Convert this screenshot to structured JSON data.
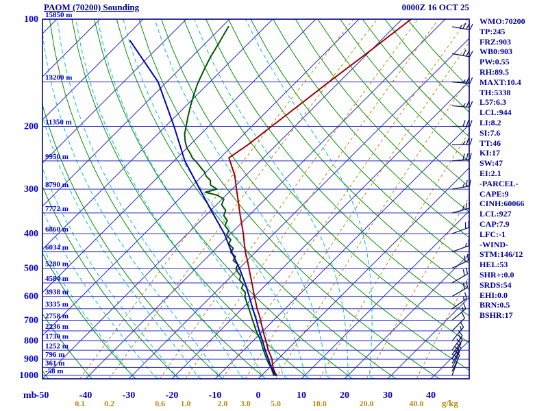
{
  "header": {
    "title": "PAOM (70200) Sounding",
    "datetime": "0000Z 16 OCT 25"
  },
  "stats": [
    "WMO:70200",
    "TP:245",
    "FRZ:903",
    "WB0:903",
    "PW:0.55",
    "RH:89.5",
    "MAXT:10.4",
    "TH:5338",
    "L57:6.3",
    "LCL:944",
    "LI:8.2",
    "SI:7.6",
    "TT:46",
    "KI:17",
    "SW:47",
    "EI:2.1",
    "-PARCEL-",
    "CAPE:9",
    "CINH:60066",
    "LCL:927",
    "CAP:7.9",
    "LFC:-1",
    "-WIND-",
    "STM:146/12",
    "HEL:53",
    "SHR+:0.0",
    "SRDS:54",
    "EHI:0.0",
    "BRN:0.5",
    "BSHR:17"
  ],
  "axes": {
    "unit_left": "mb",
    "unit_right": "g/kg",
    "pressure_ticks": [
      100,
      200,
      300,
      400,
      500,
      600,
      700,
      800,
      900,
      1000
    ],
    "temp_ticks": [
      -50,
      -40,
      -30,
      -20,
      -10,
      0,
      10,
      20,
      30,
      40
    ],
    "height_labels": [
      {
        "p": 100,
        "label": "15850 m"
      },
      {
        "p": 150,
        "label": "13200 m"
      },
      {
        "p": 200,
        "label": "11350 m"
      },
      {
        "p": 250,
        "label": "9950 m"
      },
      {
        "p": 300,
        "label": "8790 m"
      },
      {
        "p": 350,
        "label": "7772 m"
      },
      {
        "p": 400,
        "label": "6860 m"
      },
      {
        "p": 450,
        "label": "6034 m"
      },
      {
        "p": 500,
        "label": "5280 m"
      },
      {
        "p": 550,
        "label": "4584 m"
      },
      {
        "p": 600,
        "label": "3938 m"
      },
      {
        "p": 650,
        "label": "3335 m"
      },
      {
        "p": 700,
        "label": "2758 m"
      },
      {
        "p": 750,
        "label": "2236 m"
      },
      {
        "p": 800,
        "label": "1730 m"
      },
      {
        "p": 850,
        "label": "1252 m"
      },
      {
        "p": 900,
        "label": "796 m"
      },
      {
        "p": 950,
        "label": "361 m"
      },
      {
        "p": 1000,
        "label": "-58 m"
      }
    ]
  },
  "colors": {
    "frame": "#000080",
    "isotherm": "#2a2ac8",
    "pressure_line": "#2a2ac8",
    "dry_adiabat": "#009000",
    "moist_adiabat": "#00c0c8",
    "mixing_ratio": "#b8860b",
    "axis_text": "#0000cc",
    "temperature": "#a00000",
    "dewpoint": "#005500",
    "wetbulb": "#0000bb",
    "wind_barb": "#0b1560"
  },
  "chart_data": {
    "type": "skewt-logp",
    "pressure_range_mb": [
      100,
      1022
    ],
    "pressure_lines_mb": [
      100,
      150,
      200,
      250,
      300,
      350,
      400,
      450,
      500,
      550,
      600,
      650,
      700,
      750,
      800,
      850,
      900,
      950,
      1000
    ],
    "isotherms_c": {
      "min": -130,
      "max": 50,
      "step": 10
    },
    "dry_adiabats_theta_c": [
      -50,
      -40,
      -30,
      -20,
      -10,
      0,
      10,
      20,
      30,
      40,
      50,
      60,
      70,
      80,
      90,
      100,
      110,
      120,
      130,
      140,
      150,
      160
    ],
    "moist_adiabats_thetaw_c": [
      -30,
      -25,
      -20,
      -15,
      -10,
      -5,
      0,
      5,
      10,
      15,
      20,
      25
    ],
    "mixing_ratio_gkg": [
      {
        "v": 0.1,
        "label": "0.1"
      },
      {
        "v": 0.2,
        "label": "0.2"
      },
      {
        "v": 0.6,
        "label": "0.6"
      },
      {
        "v": 1,
        "label": "1.0"
      },
      {
        "v": 2,
        "label": "2.0"
      },
      {
        "v": 3,
        "label": "3.0"
      },
      {
        "v": 5,
        "label": "5.0"
      },
      {
        "v": 10,
        "label": "10.0"
      },
      {
        "v": 20,
        "label": "20.0"
      },
      {
        "v": 40,
        "label": "40.0"
      }
    ],
    "series": [
      {
        "name": "temperature",
        "points": [
          [
            1000,
            3.5
          ],
          [
            985,
            2.6
          ],
          [
            970,
            1.8
          ],
          [
            950,
            0.8
          ],
          [
            925,
            -0.3
          ],
          [
            900,
            -1.4
          ],
          [
            875,
            -2.8
          ],
          [
            850,
            -4.3
          ],
          [
            825,
            -5.6
          ],
          [
            800,
            -7.0
          ],
          [
            775,
            -8.5
          ],
          [
            750,
            -10.0
          ],
          [
            725,
            -11.5
          ],
          [
            700,
            -13.0
          ],
          [
            675,
            -14.7
          ],
          [
            650,
            -16.5
          ],
          [
            625,
            -18.2
          ],
          [
            600,
            -20.0
          ],
          [
            575,
            -21.8
          ],
          [
            550,
            -23.7
          ],
          [
            525,
            -25.7
          ],
          [
            500,
            -27.8
          ],
          [
            475,
            -30.0
          ],
          [
            450,
            -32.4
          ],
          [
            425,
            -34.7
          ],
          [
            400,
            -37.1
          ],
          [
            375,
            -39.8
          ],
          [
            350,
            -42.7
          ],
          [
            325,
            -45.7
          ],
          [
            300,
            -49.0
          ],
          [
            275,
            -52.5
          ],
          [
            245,
            -58.0
          ],
          [
            225,
            -56.6
          ],
          [
            200,
            -55.4
          ],
          [
            175,
            -54.0
          ],
          [
            150,
            -52.4
          ],
          [
            125,
            -50.3
          ],
          [
            100,
            -47.9
          ]
        ]
      },
      {
        "name": "dewpoint",
        "points": [
          [
            1000,
            2.8
          ],
          [
            975,
            1.6
          ],
          [
            950,
            0.3
          ],
          [
            925,
            -1.2
          ],
          [
            900,
            -2.6
          ],
          [
            875,
            -4.0
          ],
          [
            850,
            -5.4
          ],
          [
            825,
            -6.8
          ],
          [
            800,
            -8.2
          ],
          [
            775,
            -9.9
          ],
          [
            750,
            -11.6
          ],
          [
            725,
            -13.2
          ],
          [
            700,
            -14.9
          ],
          [
            675,
            -16.6
          ],
          [
            650,
            -18.4
          ],
          [
            625,
            -20.3
          ],
          [
            600,
            -22.2
          ],
          [
            585,
            -23.0
          ],
          [
            570,
            -24.8
          ],
          [
            555,
            -25.4
          ],
          [
            540,
            -27.2
          ],
          [
            525,
            -28.0
          ],
          [
            510,
            -29.8
          ],
          [
            500,
            -30.8
          ],
          [
            488,
            -31.2
          ],
          [
            476,
            -33.2
          ],
          [
            464,
            -33.6
          ],
          [
            452,
            -35.6
          ],
          [
            440,
            -36.0
          ],
          [
            428,
            -38.0
          ],
          [
            416,
            -38.6
          ],
          [
            404,
            -40.6
          ],
          [
            392,
            -41.2
          ],
          [
            380,
            -43.2
          ],
          [
            368,
            -43.8
          ],
          [
            356,
            -45.8
          ],
          [
            344,
            -46.6
          ],
          [
            332,
            -48.8
          ],
          [
            320,
            -49.6
          ],
          [
            312,
            -52.0
          ],
          [
            306,
            -55.5
          ],
          [
            300,
            -53.5
          ],
          [
            292,
            -56.0
          ],
          [
            284,
            -57.0
          ],
          [
            276,
            -59.0
          ],
          [
            268,
            -60.5
          ],
          [
            260,
            -62.5
          ],
          [
            252,
            -64.5
          ],
          [
            245,
            -66.5
          ],
          [
            238,
            -68.0
          ],
          [
            230,
            -70.0
          ],
          [
            220,
            -72.0
          ],
          [
            210,
            -73.8
          ],
          [
            200,
            -75.2
          ],
          [
            188,
            -77.0
          ],
          [
            176,
            -78.8
          ],
          [
            164,
            -80.6
          ],
          [
            152,
            -82.4
          ],
          [
            140,
            -84.0
          ],
          [
            128,
            -85.6
          ],
          [
            116,
            -87.0
          ],
          [
            105,
            -88.5
          ]
        ]
      },
      {
        "name": "wetbulb",
        "points": [
          [
            1000,
            3.2
          ],
          [
            950,
            0.4
          ],
          [
            900,
            -2.2
          ],
          [
            850,
            -5.0
          ],
          [
            800,
            -7.8
          ],
          [
            750,
            -10.9
          ],
          [
            700,
            -14.0
          ],
          [
            650,
            -17.5
          ],
          [
            600,
            -21.2
          ],
          [
            550,
            -25.3
          ],
          [
            500,
            -30.0
          ],
          [
            450,
            -35.6
          ],
          [
            400,
            -41.5
          ],
          [
            350,
            -49.0
          ],
          [
            300,
            -57.5
          ],
          [
            250,
            -67.5
          ],
          [
            200,
            -78.0
          ],
          [
            150,
            -92.0
          ],
          [
            115,
            -108.0
          ]
        ]
      }
    ],
    "wind_barbs": [
      {
        "p": 1000,
        "dir": 20,
        "spd": 10
      },
      {
        "p": 975,
        "dir": 25,
        "spd": 10
      },
      {
        "p": 950,
        "dir": 25,
        "spd": 15
      },
      {
        "p": 925,
        "dir": 30,
        "spd": 15
      },
      {
        "p": 900,
        "dir": 30,
        "spd": 10
      },
      {
        "p": 875,
        "dir": 35,
        "spd": 10
      },
      {
        "p": 850,
        "dir": 35,
        "spd": 15
      },
      {
        "p": 800,
        "dir": 40,
        "spd": 15
      },
      {
        "p": 750,
        "dir": 45,
        "spd": 10
      },
      {
        "p": 700,
        "dir": 50,
        "spd": 15
      },
      {
        "p": 650,
        "dir": 55,
        "spd": 15
      },
      {
        "p": 600,
        "dir": 60,
        "spd": 20
      },
      {
        "p": 550,
        "dir": 60,
        "spd": 20
      },
      {
        "p": 500,
        "dir": 65,
        "spd": 20
      },
      {
        "p": 450,
        "dir": 70,
        "spd": 15
      },
      {
        "p": 400,
        "dir": 70,
        "spd": 20
      },
      {
        "p": 350,
        "dir": 75,
        "spd": 25
      },
      {
        "p": 300,
        "dir": 80,
        "spd": 25
      },
      {
        "p": 250,
        "dir": 85,
        "spd": 30
      },
      {
        "p": 225,
        "dir": 90,
        "spd": 25
      },
      {
        "p": 200,
        "dir": 90,
        "spd": 30
      },
      {
        "p": 175,
        "dir": 95,
        "spd": 25
      },
      {
        "p": 150,
        "dir": 95,
        "spd": 25
      },
      {
        "p": 125,
        "dir": 100,
        "spd": 30
      },
      {
        "p": 105,
        "dir": 100,
        "spd": 35
      }
    ]
  }
}
